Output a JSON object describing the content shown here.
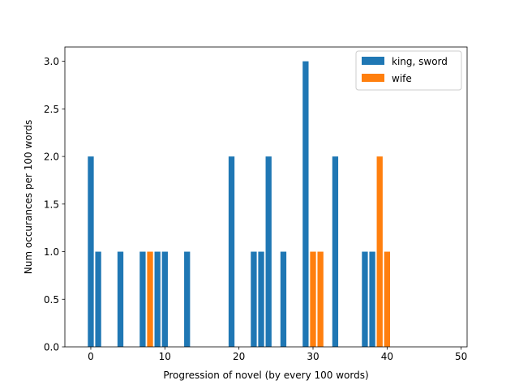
{
  "chart_data": {
    "type": "bar",
    "title": "",
    "xlabel": "Progression of novel (by every 100 words)",
    "ylabel": "Num occurances per 100 words",
    "xlim": [
      -3.5,
      50.8
    ],
    "ylim": [
      0,
      3.15
    ],
    "xticks": [
      0,
      10,
      20,
      30,
      40,
      50
    ],
    "yticks": [
      0.0,
      0.5,
      1.0,
      1.5,
      2.0,
      2.5,
      3.0
    ],
    "grid": false,
    "legend_position": "top-right",
    "bar_width": 0.8,
    "series": [
      {
        "name": "king, sword",
        "color": "#1f77b4",
        "points": [
          {
            "x": 0,
            "y": 2
          },
          {
            "x": 1,
            "y": 1
          },
          {
            "x": 4,
            "y": 1
          },
          {
            "x": 7,
            "y": 1
          },
          {
            "x": 9,
            "y": 1
          },
          {
            "x": 10,
            "y": 1
          },
          {
            "x": 13,
            "y": 1
          },
          {
            "x": 19,
            "y": 2
          },
          {
            "x": 22,
            "y": 1
          },
          {
            "x": 23,
            "y": 1
          },
          {
            "x": 24,
            "y": 2
          },
          {
            "x": 26,
            "y": 1
          },
          {
            "x": 29,
            "y": 3
          },
          {
            "x": 33,
            "y": 2
          },
          {
            "x": 37,
            "y": 1
          },
          {
            "x": 38,
            "y": 1
          }
        ]
      },
      {
        "name": "wife",
        "color": "#ff7f0e",
        "points": [
          {
            "x": 8,
            "y": 1
          },
          {
            "x": 30,
            "y": 1
          },
          {
            "x": 31,
            "y": 1
          },
          {
            "x": 39,
            "y": 2
          },
          {
            "x": 40,
            "y": 1
          }
        ]
      }
    ]
  }
}
